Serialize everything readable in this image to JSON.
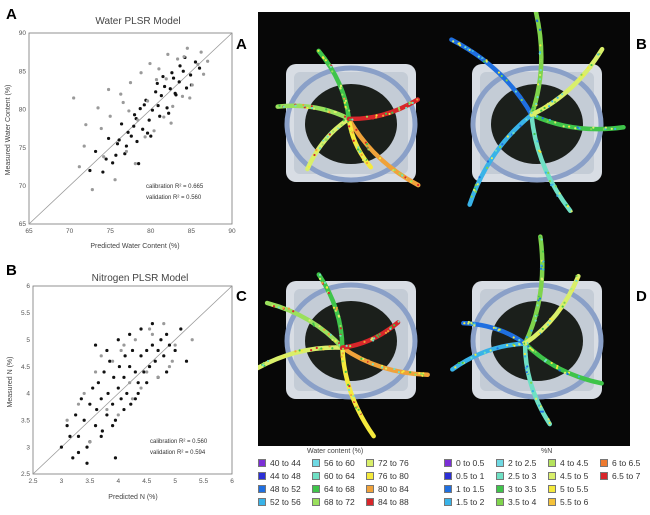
{
  "chart_data": [
    {
      "panel": "A",
      "type": "scatter",
      "title": "Water PLSR Model",
      "xlabel": "Predicted Water Content (%)",
      "ylabel": "Measured Water Content (%)",
      "xlim": [
        65,
        90
      ],
      "ylim": [
        65,
        90
      ],
      "xticks": [
        "65",
        "70",
        "75",
        "80",
        "85",
        "90"
      ],
      "yticks": [
        "65",
        "70",
        "75",
        "80",
        "85",
        "90"
      ],
      "grid": false,
      "annotations": [
        "calibration R² = 0.665",
        "validation R² = 0.560"
      ],
      "series": [
        {
          "color": "#111111",
          "x": [
            72.5,
            73.2,
            74.1,
            74.8,
            75.3,
            75.9,
            76.4,
            76.8,
            77.2,
            77.6,
            78.0,
            78.3,
            78.7,
            79.0,
            79.4,
            79.8,
            80.2,
            80.6,
            80.9,
            81.3,
            81.7,
            82.0,
            82.4,
            82.8,
            83.1,
            83.5,
            84.0,
            84.4,
            84.9,
            85.5,
            86.0,
            74.5,
            75.7,
            77.0,
            78.2,
            79.6,
            80.8,
            82.2,
            83.6,
            85.0,
            76.1,
            77.9,
            79.2,
            81.1,
            82.6,
            84.2,
            80.0,
            81.5,
            83.0,
            78.5
          ],
          "y": [
            72.0,
            74.5,
            71.8,
            76.2,
            73.0,
            75.5,
            78.1,
            74.2,
            77.0,
            76.5,
            79.3,
            75.8,
            80.1,
            77.4,
            81.2,
            78.6,
            79.9,
            82.3,
            80.5,
            81.8,
            83.0,
            80.2,
            82.7,
            84.1,
            81.9,
            83.6,
            85.0,
            82.8,
            84.5,
            86.2,
            85.4,
            73.5,
            74.0,
            75.2,
            78.8,
            76.9,
            83.4,
            79.5,
            85.7,
            83.2,
            76.0,
            77.8,
            80.6,
            79.1,
            84.8,
            86.8,
            76.5,
            84.3,
            82.1,
            72.9
          ]
        },
        {
          "color": "#9a9a9a",
          "x": [
            70.5,
            71.2,
            72.0,
            72.8,
            73.5,
            74.2,
            75.0,
            75.6,
            76.3,
            77.0,
            77.5,
            78.1,
            78.8,
            79.3,
            79.9,
            80.4,
            81.0,
            81.6,
            82.1,
            82.7,
            83.3,
            83.9,
            84.5,
            85.1,
            85.8,
            86.5,
            87.0,
            71.8,
            73.9,
            76.6,
            78.4,
            80.7,
            82.5,
            84.8,
            86.2,
            74.8,
            77.3,
            79.6,
            81.9,
            84.1
          ],
          "y": [
            81.5,
            72.5,
            78.0,
            69.5,
            80.2,
            73.8,
            79.1,
            70.8,
            82.0,
            74.5,
            83.5,
            72.9,
            84.8,
            76.4,
            86.0,
            77.2,
            85.3,
            79.0,
            87.2,
            80.4,
            86.6,
            81.7,
            88.0,
            83.2,
            85.9,
            84.6,
            86.3,
            75.2,
            77.5,
            80.9,
            78.6,
            83.9,
            78.2,
            81.5,
            87.5,
            82.6,
            79.8,
            81.1,
            84.0,
            86.9
          ]
        }
      ]
    },
    {
      "panel": "B",
      "type": "scatter",
      "title": "Nitrogen PLSR Model",
      "xlabel": "Predicted N (%)",
      "ylabel": "Measured N (%)",
      "xlim": [
        2.5,
        6
      ],
      "ylim": [
        2.5,
        6
      ],
      "xticks": [
        "2.5",
        "3",
        "3.5",
        "4",
        "4.5",
        "5",
        "5.5",
        "6"
      ],
      "yticks": [
        "2.5",
        "3",
        "3.5",
        "4",
        "4.5",
        "5",
        "5.5",
        "6"
      ],
      "grid": false,
      "annotations": [
        "calibration R² = 0.560",
        "validation R² = 0.594"
      ],
      "series": [
        {
          "color": "#111111",
          "x": [
            3.0,
            3.1,
            3.2,
            3.25,
            3.3,
            3.35,
            3.4,
            3.45,
            3.5,
            3.55,
            3.6,
            3.62,
            3.65,
            3.7,
            3.72,
            3.75,
            3.8,
            3.82,
            3.85,
            3.9,
            3.92,
            3.95,
            4.0,
            4.02,
            4.05,
            4.1,
            4.12,
            4.15,
            4.2,
            4.22,
            4.25,
            4.3,
            4.35,
            4.4,
            4.45,
            4.5,
            4.55,
            4.6,
            4.65,
            4.7,
            4.75,
            4.8,
            4.85,
            4.9,
            5.0,
            5.1,
            3.3,
            3.5,
            3.7,
            3.9,
            4.1,
            4.3,
            4.5,
            4.7,
            3.6,
            3.8,
            4.0,
            4.2,
            4.4,
            4.6,
            3.45,
            3.95,
            4.35,
            4.85,
            3.15,
            5.2
          ],
          "y": [
            3.0,
            3.4,
            2.8,
            3.6,
            3.2,
            3.9,
            3.5,
            3.0,
            3.8,
            4.1,
            3.4,
            3.7,
            4.2,
            3.9,
            3.3,
            4.4,
            3.6,
            4.0,
            4.6,
            3.8,
            4.3,
            3.5,
            4.1,
            4.5,
            3.9,
            4.3,
            4.7,
            4.0,
            4.5,
            3.8,
            4.8,
            4.4,
            4.2,
            4.7,
            4.4,
            4.8,
            4.5,
            4.9,
            4.6,
            4.8,
            5.0,
            4.7,
            5.1,
            4.9,
            4.8,
            5.2,
            2.9,
            3.1,
            3.2,
            3.4,
            3.7,
            3.9,
            4.2,
            4.3,
            4.9,
            4.8,
            5.0,
            5.1,
            5.2,
            5.3,
            2.7,
            2.8,
            4.0,
            4.4,
            3.2,
            4.6
          ]
        },
        {
          "color": "#9a9a9a",
          "x": [
            3.1,
            3.3,
            3.5,
            3.6,
            3.8,
            3.9,
            4.0,
            4.1,
            4.2,
            4.3,
            4.4,
            4.5,
            4.6,
            4.7,
            4.8,
            4.9,
            5.0,
            3.4,
            3.7,
            4.05,
            4.25,
            4.55,
            4.95,
            5.3
          ],
          "y": [
            3.5,
            3.8,
            3.1,
            4.4,
            3.7,
            4.6,
            3.6,
            4.9,
            4.2,
            5.0,
            4.1,
            4.4,
            5.1,
            4.3,
            5.3,
            4.5,
            4.9,
            4.0,
            4.7,
            4.8,
            3.9,
            5.2,
            4.6,
            5.0
          ]
        }
      ]
    }
  ],
  "photos": {
    "panels": [
      {
        "label": "A",
        "map": "water"
      },
      {
        "label": "B",
        "map": "nitrogen"
      },
      {
        "label": "C",
        "map": "water"
      },
      {
        "label": "D",
        "map": "nitrogen"
      }
    ]
  },
  "legend_water": {
    "title": "Water content (%)",
    "items": [
      {
        "label": "40 to 44",
        "color": "#7b2fd6"
      },
      {
        "label": "44 to 48",
        "color": "#2c2fd6"
      },
      {
        "label": "48 to 52",
        "color": "#1f6fe0"
      },
      {
        "label": "52 to 56",
        "color": "#39b3e8"
      },
      {
        "label": "56 to 60",
        "color": "#6fd9e3"
      },
      {
        "label": "60 to 64",
        "color": "#6fe0c4"
      },
      {
        "label": "64 to 68",
        "color": "#3fc44a"
      },
      {
        "label": "68 to 72",
        "color": "#9ae05c"
      },
      {
        "label": "72 to 76",
        "color": "#d9ef6a"
      },
      {
        "label": "76 to 80",
        "color": "#f5ea3c"
      },
      {
        "label": "80 to 84",
        "color": "#f0a23a"
      },
      {
        "label": "84 to 88",
        "color": "#d8262a"
      }
    ]
  },
  "legend_nitrogen": {
    "title": "%N",
    "items": [
      {
        "label": "0 to 0.5",
        "color": "#7b2fd6"
      },
      {
        "label": "0.5 to 1",
        "color": "#2c2fd6"
      },
      {
        "label": "1 to 1.5",
        "color": "#1f6fe0"
      },
      {
        "label": "1.5 to 2",
        "color": "#39b3e8"
      },
      {
        "label": "2 to 2.5",
        "color": "#6fd9e3"
      },
      {
        "label": "2.5 to 3",
        "color": "#6fe0c4"
      },
      {
        "label": "3 to 3.5",
        "color": "#3fc44a"
      },
      {
        "label": "3.5 to 4",
        "color": "#7fd44c"
      },
      {
        "label": "4 to 4.5",
        "color": "#b5e35c"
      },
      {
        "label": "4.5 to 5",
        "color": "#d9ef6a"
      },
      {
        "label": "5 to 5.5",
        "color": "#f5ea3c"
      },
      {
        "label": "5.5 to 6",
        "color": "#f5c23a"
      },
      {
        "label": "6 to 6.5",
        "color": "#ee7a30"
      },
      {
        "label": "6.5 to 7",
        "color": "#d8262a"
      }
    ]
  }
}
